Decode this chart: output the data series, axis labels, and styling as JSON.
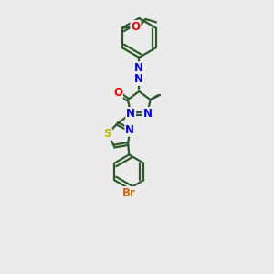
{
  "background_color": "#ebebeb",
  "atom_colors": {
    "C": "#2d5a2d",
    "N": "#0000ee",
    "O": "#ee0000",
    "S": "#bbbb00",
    "Br": "#cc6600"
  },
  "bond_color": "#2d5a2d",
  "bond_width": 1.6,
  "font_size_atom": 8.5,
  "figure_size": [
    3.0,
    3.0
  ],
  "dpi": 100,
  "scale": 1.1
}
